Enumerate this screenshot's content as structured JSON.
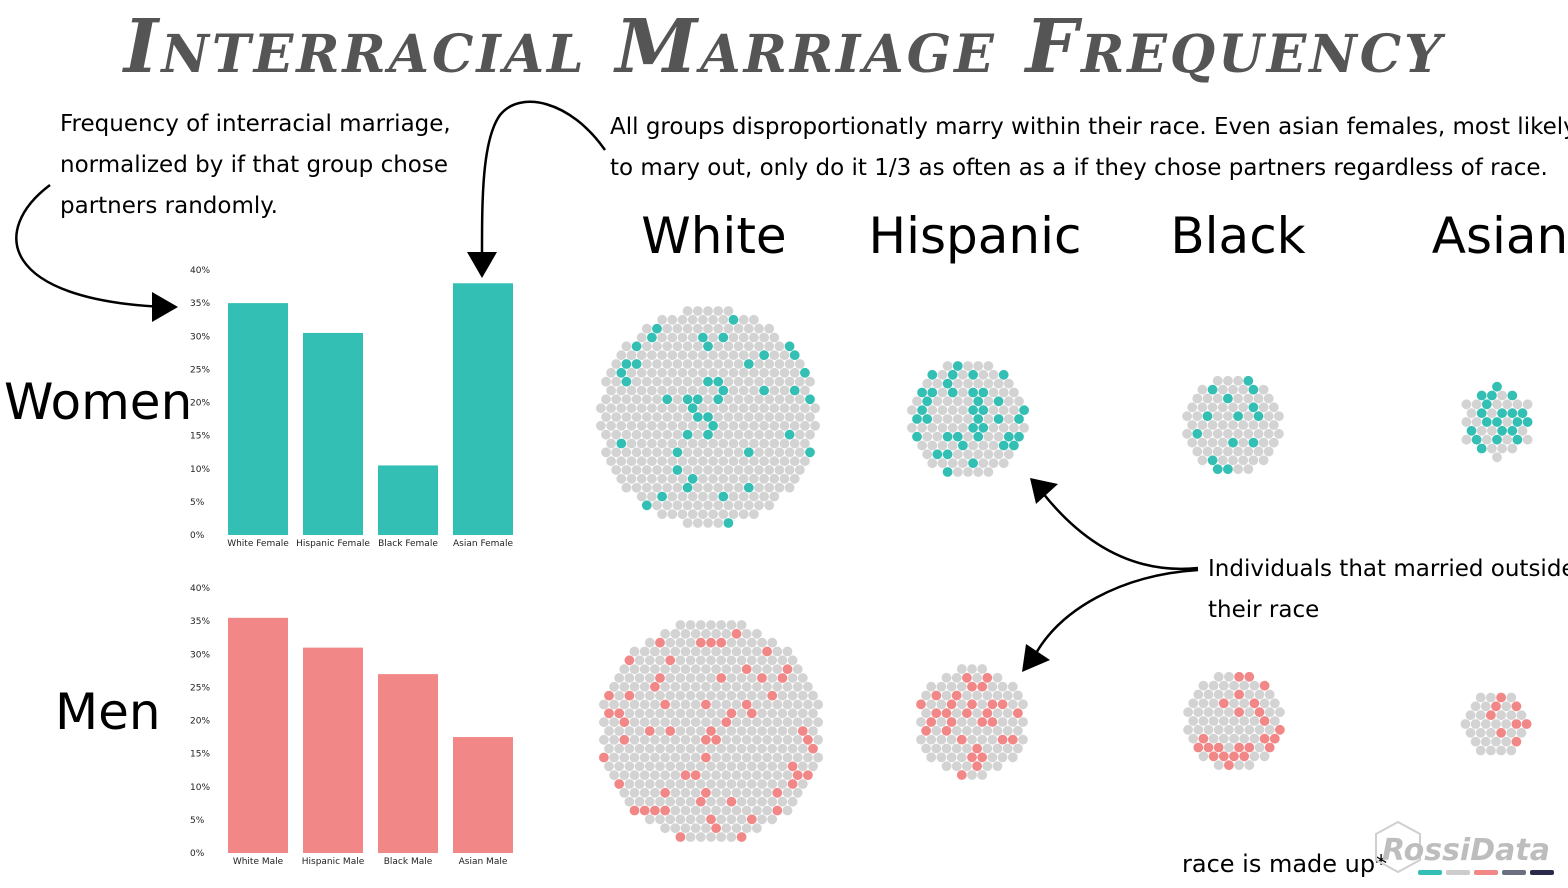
{
  "title": "Interracial Marriage Frequency",
  "notes": {
    "left": [
      "Frequency of interracial marriage,",
      "normalized by if that group chose",
      "partners randomly."
    ],
    "top": [
      "All groups disproportionatly marry within their race. Even asian females, most likely",
      "to mary out, only do it 1/3 as often as a if they chose partners regardless of race."
    ],
    "right": [
      "Individuals that married outside",
      "their race"
    ]
  },
  "row_labels": {
    "women": "Women",
    "men": "Men"
  },
  "group_headers": [
    "White",
    "Hispanic",
    "Black",
    "Asian"
  ],
  "footnote": "race is made up*",
  "logo": {
    "text": "RossiData",
    "stripe_colors": [
      "#33bfb3",
      "#cccccc",
      "#f28787",
      "#6b6f7f",
      "#2c2a4a"
    ]
  },
  "colors": {
    "women": "#33bfb3",
    "men": "#f28787",
    "dot_base": "#d3d3d3",
    "title": "#555555"
  },
  "chart_data": [
    {
      "type": "bar",
      "categories": [
        "White Female",
        "Hispanic Female",
        "Black Female",
        "Asian Female"
      ],
      "values": [
        35,
        30.5,
        10.5,
        38
      ],
      "ylim": [
        0,
        40
      ],
      "yticks": [
        "0%",
        "5%",
        "10%",
        "15%",
        "20%",
        "25%",
        "30%",
        "35%",
        "40%"
      ],
      "color": "#33bfb3"
    },
    {
      "type": "bar",
      "categories": [
        "White Male",
        "Hispanic Male",
        "Black Male",
        "Asian Male"
      ],
      "values": [
        35.5,
        31,
        27,
        17.5
      ],
      "ylim": [
        0,
        40
      ],
      "yticks": [
        "0%",
        "5%",
        "10%",
        "15%",
        "20%",
        "25%",
        "30%",
        "35%",
        "40%"
      ],
      "color": "#f28787"
    },
    {
      "type": "scatter",
      "groups": [
        {
          "group": "White",
          "sex": "Women",
          "individuals": 400,
          "married_out": 45
        },
        {
          "group": "Hispanic",
          "sex": "Women",
          "individuals": 120,
          "married_out": 38
        },
        {
          "group": "Black",
          "sex": "Women",
          "individuals": 75,
          "married_out": 14
        },
        {
          "group": "Asian",
          "sex": "Women",
          "individuals": 45,
          "married_out": 20
        },
        {
          "group": "White",
          "sex": "Men",
          "individuals": 420,
          "married_out": 60
        },
        {
          "group": "Hispanic",
          "sex": "Men",
          "individuals": 110,
          "married_out": 30
        },
        {
          "group": "Black",
          "sex": "Men",
          "individuals": 85,
          "married_out": 24
        },
        {
          "group": "Asian",
          "sex": "Men",
          "individuals": 40,
          "married_out": 8
        }
      ]
    }
  ]
}
